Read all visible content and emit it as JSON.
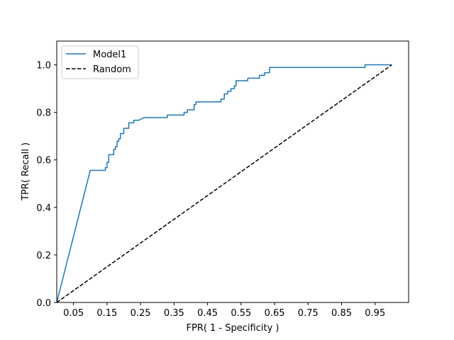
{
  "chart_data": {
    "type": "line",
    "title": "",
    "xlabel": "FPR( 1 - Specificity  )",
    "ylabel": "TPR( Recall )",
    "xlim": [
      0.0,
      1.05
    ],
    "ylim": [
      0.0,
      1.1
    ],
    "xticks": [
      0.05,
      0.15,
      0.25,
      0.35,
      0.45,
      0.55,
      0.65,
      0.75,
      0.85,
      0.95
    ],
    "xtick_labels": [
      "0.05",
      "0.15",
      "0.25",
      "0.35",
      "0.45",
      "0.55",
      "0.65",
      "0.75",
      "0.85",
      "0.95"
    ],
    "yticks": [
      0.0,
      0.2,
      0.4,
      0.6,
      0.8,
      1.0
    ],
    "ytick_labels": [
      "0.0",
      "0.2",
      "0.4",
      "0.6",
      "0.8",
      "1.0"
    ],
    "grid": false,
    "legend_position": "top-left",
    "series": [
      {
        "name": "Model1",
        "color": "#1f77b4",
        "style": "solid",
        "x": [
          0.0,
          0.1,
          0.145,
          0.145,
          0.15,
          0.15,
          0.155,
          0.155,
          0.17,
          0.17,
          0.175,
          0.175,
          0.18,
          0.18,
          0.185,
          0.185,
          0.19,
          0.19,
          0.2,
          0.2,
          0.215,
          0.215,
          0.23,
          0.23,
          0.245,
          0.245,
          0.26,
          0.33,
          0.33,
          0.365,
          0.38,
          0.38,
          0.39,
          0.39,
          0.41,
          0.41,
          0.415,
          0.415,
          0.47,
          0.49,
          0.49,
          0.5,
          0.5,
          0.51,
          0.51,
          0.52,
          0.52,
          0.53,
          0.53,
          0.535,
          0.535,
          0.57,
          0.57,
          0.605,
          0.605,
          0.62,
          0.62,
          0.635,
          0.635,
          0.65,
          0.92,
          0.92,
          0.95,
          1.0
        ],
        "y": [
          0.0,
          0.556,
          0.556,
          0.567,
          0.567,
          0.589,
          0.589,
          0.622,
          0.622,
          0.644,
          0.644,
          0.656,
          0.656,
          0.678,
          0.678,
          0.689,
          0.689,
          0.711,
          0.711,
          0.733,
          0.733,
          0.756,
          0.756,
          0.767,
          0.767,
          0.767,
          0.778,
          0.778,
          0.789,
          0.789,
          0.789,
          0.8,
          0.8,
          0.811,
          0.811,
          0.833,
          0.833,
          0.844,
          0.844,
          0.844,
          0.856,
          0.856,
          0.878,
          0.878,
          0.889,
          0.889,
          0.9,
          0.9,
          0.911,
          0.911,
          0.933,
          0.933,
          0.944,
          0.944,
          0.956,
          0.956,
          0.967,
          0.967,
          0.989,
          0.989,
          0.989,
          1.0,
          1.0,
          1.0
        ]
      },
      {
        "name": "Random",
        "color": "#000000",
        "style": "dashed",
        "x": [
          0.0,
          1.0
        ],
        "y": [
          0.0,
          1.0
        ]
      }
    ]
  }
}
